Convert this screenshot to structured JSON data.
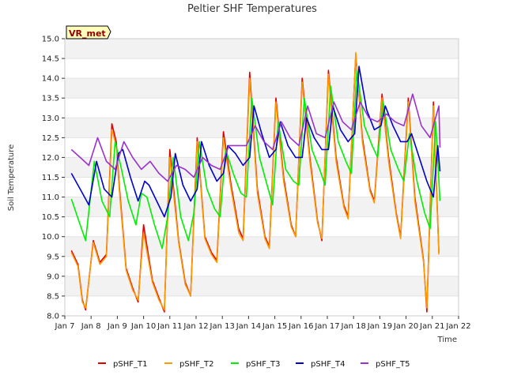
{
  "chart_data": {
    "type": "line",
    "title": "Peltier SHF Temperatures",
    "xlabel": "Time",
    "ylabel": "Soil Temperature",
    "badge": "VR_met",
    "xlim": [
      "2023-01-07",
      "2023-01-22"
    ],
    "ylim": [
      8.0,
      15.0
    ],
    "x_ticks": [
      "Jan 7",
      "Jan 8",
      "Jan 9",
      "Jan 10",
      "Jan 11",
      "Jan 12",
      "Jan 13",
      "Jan 14",
      "Jan 15",
      "Jan 16",
      "Jan 17",
      "Jan 18",
      "Jan 19",
      "Jan 20",
      "Jan 21",
      "Jan 22"
    ],
    "y_ticks": [
      "8.0",
      "8.5",
      "9.0",
      "9.5",
      "10.0",
      "10.5",
      "11.0",
      "11.5",
      "12.0",
      "12.5",
      "13.0",
      "13.5",
      "14.0",
      "14.5",
      "15.0"
    ],
    "grid": "horizontal bands",
    "legend_position": "bottom",
    "series": [
      {
        "name": "pSHF_T1",
        "color": "#dd0000",
        "x": [
          "2023-01-07 06:00",
          "2023-01-07 12:00",
          "2023-01-07 16:00",
          "2023-01-07 19:00",
          "2023-01-08 02:00",
          "2023-01-08 08:00",
          "2023-01-08 14:00",
          "2023-01-08 19:00",
          "2023-01-08 23:00",
          "2023-01-09 02:00",
          "2023-01-09 08:00",
          "2023-01-09 14:00",
          "2023-01-09 19:00",
          "2023-01-10 00:00",
          "2023-01-10 08:00",
          "2023-01-10 14:00",
          "2023-01-10 19:00",
          "2023-01-11 00:00",
          "2023-01-11 08:00",
          "2023-01-11 14:00",
          "2023-01-11 19:00",
          "2023-01-12 01:00",
          "2023-01-12 08:00",
          "2023-01-12 14:00",
          "2023-01-12 19:00",
          "2023-01-13 01:00",
          "2023-01-13 08:00",
          "2023-01-13 15:00",
          "2023-01-13 19:00",
          "2023-01-14 01:00",
          "2023-01-14 08:00",
          "2023-01-14 15:00",
          "2023-01-14 19:00",
          "2023-01-15 01:00",
          "2023-01-15 08:00",
          "2023-01-15 15:00",
          "2023-01-15 19:00",
          "2023-01-16 01:00",
          "2023-01-16 08:00",
          "2023-01-16 15:00",
          "2023-01-16 19:00",
          "2023-01-17 01:00",
          "2023-01-17 08:00",
          "2023-01-17 15:00",
          "2023-01-17 19:00",
          "2023-01-18 02:00",
          "2023-01-18 08:00",
          "2023-01-18 15:00",
          "2023-01-18 19:00",
          "2023-01-19 02:00",
          "2023-01-19 08:00",
          "2023-01-19 15:00",
          "2023-01-19 19:00",
          "2023-01-20 02:00",
          "2023-01-20 08:00",
          "2023-01-20 16:00",
          "2023-01-20 19:00",
          "2023-01-21 01:00",
          "2023-01-21 06:00"
        ],
        "y": [
          9.65,
          9.3,
          8.4,
          8.15,
          9.9,
          9.35,
          9.55,
          12.85,
          12.4,
          11.2,
          9.2,
          8.7,
          8.35,
          10.3,
          8.9,
          8.45,
          8.1,
          12.2,
          9.9,
          8.85,
          8.5,
          12.5,
          10.0,
          9.6,
          9.4,
          12.65,
          11.3,
          10.2,
          9.95,
          14.15,
          11.2,
          10.0,
          9.75,
          13.5,
          11.5,
          10.3,
          10.0,
          14.0,
          12.0,
          10.4,
          9.9,
          14.2,
          12.0,
          10.8,
          10.5,
          14.6,
          12.5,
          11.2,
          10.9,
          13.6,
          12.0,
          10.6,
          10.0,
          13.5,
          11.0,
          9.4,
          8.1,
          13.4,
          9.6
        ]
      },
      {
        "name": "pSHF_T2",
        "color": "#ff9900",
        "x": [
          "2023-01-07 06:00",
          "2023-01-07 12:00",
          "2023-01-07 16:00",
          "2023-01-07 19:00",
          "2023-01-08 02:00",
          "2023-01-08 08:00",
          "2023-01-08 14:00",
          "2023-01-08 19:00",
          "2023-01-08 23:00",
          "2023-01-09 02:00",
          "2023-01-09 08:00",
          "2023-01-09 14:00",
          "2023-01-09 19:00",
          "2023-01-10 00:00",
          "2023-01-10 08:00",
          "2023-01-10 14:00",
          "2023-01-10 19:00",
          "2023-01-11 00:00",
          "2023-01-11 08:00",
          "2023-01-11 14:00",
          "2023-01-11 19:00",
          "2023-01-12 01:00",
          "2023-01-12 08:00",
          "2023-01-12 14:00",
          "2023-01-12 19:00",
          "2023-01-13 01:00",
          "2023-01-13 08:00",
          "2023-01-13 15:00",
          "2023-01-13 19:00",
          "2023-01-14 01:00",
          "2023-01-14 08:00",
          "2023-01-14 15:00",
          "2023-01-14 19:00",
          "2023-01-15 01:00",
          "2023-01-15 08:00",
          "2023-01-15 15:00",
          "2023-01-15 19:00",
          "2023-01-16 01:00",
          "2023-01-16 08:00",
          "2023-01-16 15:00",
          "2023-01-16 19:00",
          "2023-01-17 01:00",
          "2023-01-17 08:00",
          "2023-01-17 15:00",
          "2023-01-17 19:00",
          "2023-01-18 02:00",
          "2023-01-18 08:00",
          "2023-01-18 15:00",
          "2023-01-18 19:00",
          "2023-01-19 02:00",
          "2023-01-19 08:00",
          "2023-01-19 15:00",
          "2023-01-19 19:00",
          "2023-01-20 02:00",
          "2023-01-20 08:00",
          "2023-01-20 16:00",
          "2023-01-20 19:00",
          "2023-01-21 01:00",
          "2023-01-21 06:00"
        ],
        "y": [
          9.6,
          9.25,
          8.35,
          8.2,
          9.85,
          9.3,
          9.5,
          12.7,
          12.3,
          11.1,
          9.15,
          8.65,
          8.4,
          10.1,
          8.85,
          8.4,
          8.15,
          12.0,
          9.85,
          8.8,
          8.5,
          12.4,
          9.95,
          9.55,
          9.35,
          12.5,
          11.2,
          10.1,
          9.9,
          14.0,
          11.1,
          9.95,
          9.7,
          13.4,
          11.4,
          10.25,
          10.0,
          13.9,
          11.9,
          10.35,
          9.95,
          14.1,
          11.9,
          10.75,
          10.45,
          14.65,
          12.4,
          11.15,
          10.85,
          13.5,
          11.9,
          10.55,
          9.95,
          13.4,
          10.9,
          9.35,
          8.2,
          13.3,
          9.55
        ]
      },
      {
        "name": "pSHF_T3",
        "color": "#00ee00",
        "x": [
          "2023-01-07 06:00",
          "2023-01-07 14:00",
          "2023-01-07 19:00",
          "2023-01-08 03:00",
          "2023-01-08 10:00",
          "2023-01-08 17:00",
          "2023-01-08 22:00",
          "2023-01-09 03:00",
          "2023-01-09 10:00",
          "2023-01-09 17:00",
          "2023-01-09 22:00",
          "2023-01-10 03:00",
          "2023-01-10 10:00",
          "2023-01-10 17:00",
          "2023-01-10 22:00",
          "2023-01-11 03:00",
          "2023-01-11 10:00",
          "2023-01-11 17:00",
          "2023-01-11 22:00",
          "2023-01-12 03:00",
          "2023-01-12 10:00",
          "2023-01-12 17:00",
          "2023-01-12 22:00",
          "2023-01-13 03:00",
          "2023-01-13 10:00",
          "2023-01-13 17:00",
          "2023-01-13 22:00",
          "2023-01-14 03:00",
          "2023-01-14 10:00",
          "2023-01-14 17:00",
          "2023-01-14 22:00",
          "2023-01-15 03:00",
          "2023-01-15 10:00",
          "2023-01-15 17:00",
          "2023-01-15 22:00",
          "2023-01-16 03:00",
          "2023-01-16 10:00",
          "2023-01-16 17:00",
          "2023-01-16 22:00",
          "2023-01-17 03:00",
          "2023-01-17 10:00",
          "2023-01-17 17:00",
          "2023-01-17 22:00",
          "2023-01-18 03:00",
          "2023-01-18 10:00",
          "2023-01-18 17:00",
          "2023-01-18 22:00",
          "2023-01-19 03:00",
          "2023-01-19 10:00",
          "2023-01-19 17:00",
          "2023-01-19 22:00",
          "2023-01-20 03:00",
          "2023-01-20 10:00",
          "2023-01-20 17:00",
          "2023-01-20 22:00",
          "2023-01-21 03:00",
          "2023-01-21 07:00"
        ],
        "y": [
          10.95,
          10.3,
          9.9,
          11.9,
          10.9,
          10.5,
          12.4,
          11.8,
          10.9,
          10.3,
          11.1,
          11.0,
          10.3,
          9.7,
          10.5,
          12.0,
          10.5,
          9.9,
          10.6,
          12.4,
          11.2,
          10.7,
          10.5,
          12.2,
          11.6,
          11.1,
          11.0,
          13.5,
          12.0,
          11.3,
          10.8,
          12.9,
          11.7,
          11.4,
          11.3,
          13.5,
          12.2,
          11.7,
          11.3,
          13.8,
          12.4,
          11.9,
          11.6,
          14.2,
          12.8,
          12.3,
          12.0,
          13.4,
          12.2,
          11.7,
          11.4,
          12.6,
          11.4,
          10.6,
          10.2,
          12.9,
          10.9
        ]
      },
      {
        "name": "pSHF_T4",
        "color": "#0000cc",
        "x": [
          "2023-01-07 06:00",
          "2023-01-07 14:00",
          "2023-01-07 22:00",
          "2023-01-08 05:00",
          "2023-01-08 12:00",
          "2023-01-08 19:00",
          "2023-01-09 01:00",
          "2023-01-09 05:00",
          "2023-01-09 12:00",
          "2023-01-09 19:00",
          "2023-01-10 01:00",
          "2023-01-10 05:00",
          "2023-01-10 12:00",
          "2023-01-10 19:00",
          "2023-01-11 01:00",
          "2023-01-11 05:00",
          "2023-01-11 12:00",
          "2023-01-11 19:00",
          "2023-01-12 01:00",
          "2023-01-12 05:00",
          "2023-01-12 12:00",
          "2023-01-12 19:00",
          "2023-01-13 01:00",
          "2023-01-13 05:00",
          "2023-01-13 12:00",
          "2023-01-13 19:00",
          "2023-01-14 01:00",
          "2023-01-14 05:00",
          "2023-01-14 12:00",
          "2023-01-14 19:00",
          "2023-01-15 01:00",
          "2023-01-15 05:00",
          "2023-01-15 12:00",
          "2023-01-15 19:00",
          "2023-01-16 01:00",
          "2023-01-16 05:00",
          "2023-01-16 12:00",
          "2023-01-16 19:00",
          "2023-01-17 01:00",
          "2023-01-17 05:00",
          "2023-01-17 12:00",
          "2023-01-17 19:00",
          "2023-01-18 01:00",
          "2023-01-18 05:00",
          "2023-01-18 12:00",
          "2023-01-18 19:00",
          "2023-01-19 01:00",
          "2023-01-19 05:00",
          "2023-01-19 12:00",
          "2023-01-19 19:00",
          "2023-01-20 01:00",
          "2023-01-20 05:00",
          "2023-01-20 12:00",
          "2023-01-20 19:00",
          "2023-01-21 01:00",
          "2023-01-21 05:00",
          "2023-01-21 07:00"
        ],
        "y": [
          11.6,
          11.2,
          10.8,
          11.9,
          11.2,
          11.0,
          12.1,
          12.2,
          11.5,
          10.9,
          11.4,
          11.3,
          10.9,
          10.5,
          11.0,
          12.1,
          11.3,
          10.9,
          11.2,
          12.4,
          11.8,
          11.4,
          11.6,
          12.3,
          12.1,
          11.8,
          12.0,
          13.3,
          12.6,
          12.0,
          12.2,
          12.9,
          12.3,
          12.0,
          12.0,
          13.0,
          12.5,
          12.2,
          12.2,
          13.3,
          12.7,
          12.4,
          12.6,
          14.3,
          13.2,
          12.7,
          12.8,
          13.3,
          12.8,
          12.4,
          12.4,
          12.6,
          12.0,
          11.4,
          11.0,
          12.3,
          11.65
        ]
      },
      {
        "name": "pSHF_T5",
        "color": "#9933cc",
        "x": [
          "2023-01-07 06:00",
          "2023-01-07 14:00",
          "2023-01-07 22:00",
          "2023-01-08 06:00",
          "2023-01-08 14:00",
          "2023-01-08 22:00",
          "2023-01-09 06:00",
          "2023-01-09 14:00",
          "2023-01-09 22:00",
          "2023-01-10 06:00",
          "2023-01-10 14:00",
          "2023-01-10 22:00",
          "2023-01-11 06:00",
          "2023-01-11 14:00",
          "2023-01-11 22:00",
          "2023-01-12 06:00",
          "2023-01-12 14:00",
          "2023-01-12 22:00",
          "2023-01-13 06:00",
          "2023-01-13 14:00",
          "2023-01-13 22:00",
          "2023-01-14 06:00",
          "2023-01-14 14:00",
          "2023-01-14 22:00",
          "2023-01-15 06:00",
          "2023-01-15 14:00",
          "2023-01-15 22:00",
          "2023-01-16 06:00",
          "2023-01-16 14:00",
          "2023-01-16 22:00",
          "2023-01-17 06:00",
          "2023-01-17 14:00",
          "2023-01-17 22:00",
          "2023-01-18 06:00",
          "2023-01-18 14:00",
          "2023-01-18 22:00",
          "2023-01-19 06:00",
          "2023-01-19 14:00",
          "2023-01-19 22:00",
          "2023-01-20 06:00",
          "2023-01-20 14:00",
          "2023-01-20 22:00",
          "2023-01-21 06:00",
          "2023-01-21 07:00"
        ],
        "y": [
          12.2,
          12.0,
          11.8,
          12.5,
          11.9,
          11.7,
          12.4,
          12.0,
          11.7,
          11.9,
          11.6,
          11.4,
          11.8,
          11.7,
          11.5,
          12.0,
          11.8,
          11.7,
          12.3,
          12.3,
          12.3,
          12.8,
          12.4,
          12.2,
          12.9,
          12.5,
          12.3,
          13.3,
          12.6,
          12.5,
          13.4,
          12.9,
          12.7,
          13.4,
          13.0,
          12.9,
          13.1,
          12.9,
          12.8,
          13.6,
          12.8,
          12.5,
          13.3,
          12.25
        ]
      }
    ]
  }
}
